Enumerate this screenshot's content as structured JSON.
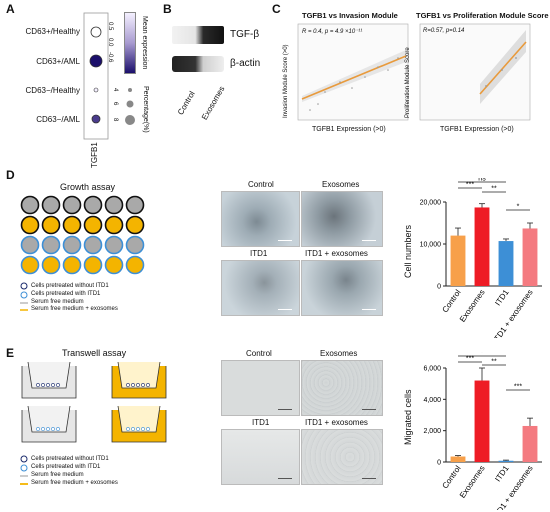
{
  "panel_labels": {
    "A": "A",
    "B": "B",
    "C": "C",
    "D": "D",
    "E": "E"
  },
  "panelA": {
    "rows": [
      "CD63+/Healthy",
      "CD63+/AML",
      "CD63−/Healthy",
      "CD63−/AML"
    ],
    "xlabel": "TGFB1",
    "colorbar_title": "Mean expression",
    "colorbar_ticks": [
      "-0.6",
      "0.0",
      "0.5"
    ],
    "size_title": "Percentage(%)",
    "size_ticks": [
      "4",
      "6",
      "8"
    ],
    "colors": {
      "low": "#f4f0ff",
      "high": "#1b0f6b"
    }
  },
  "panelB": {
    "bands": [
      "TGF-β",
      "β-actin"
    ],
    "lanes": [
      "Control",
      "Exosomes"
    ]
  },
  "panelC": {
    "left": {
      "title": "TGFB1 vs Invasion Module",
      "stat": "R = 0.4, p = 4.9 ×10⁻¹¹",
      "xlabel": "TGFB1 Expression (>0)",
      "ylabel": "Invasion Module Score (>0)"
    },
    "right": {
      "title": "TGFB1 vs Proliferation Module Score",
      "stat": "R=0.57, p=0.14",
      "xlabel": "TGFB1 Expression (>0)",
      "ylabel": "Proliferation Module Score"
    },
    "colors": {
      "line": "#e89a3c",
      "band": "#cfcfcf"
    }
  },
  "panelD": {
    "assay_title": "Growth assay",
    "legend": [
      "Cells pretreated without ITD1",
      "Cells pretreated with ITD1",
      "Serum free medium",
      "Serum free medium + exosomes"
    ],
    "image_labels": [
      "Control",
      "Exosomes",
      "ITD1",
      "ITD1 + exosomes"
    ],
    "chart_data": {
      "type": "bar",
      "categories": [
        "Control",
        "Exosomes",
        "ITD1",
        "ITD1 + exosomes"
      ],
      "values": [
        12000,
        18700,
        10700,
        13700
      ],
      "errors": [
        1800,
        900,
        500,
        1300
      ],
      "colors": [
        "#f7a04a",
        "#ee1c25",
        "#3d8fd6",
        "#f47a80"
      ],
      "ylabel": "Cell numbers",
      "ylim": [
        0,
        20000
      ],
      "yticks": [
        "0",
        "10,000",
        "20,000"
      ],
      "significance": [
        {
          "from": 0,
          "to": 1,
          "label": "***"
        },
        {
          "from": 0,
          "to": 2,
          "label": "ns"
        },
        {
          "from": 1,
          "to": 2,
          "label": "**"
        },
        {
          "from": 2,
          "to": 3,
          "label": "*"
        }
      ]
    }
  },
  "panelE": {
    "assay_title": "Transwell assay",
    "legend": [
      "Cells pretreated without ITD1",
      "Cells pretreated with ITD1",
      "Serum free medium",
      "Serum free medium + exosomes"
    ],
    "image_labels": [
      "Control",
      "Exosomes",
      "ITD1",
      "ITD1 + exosomes"
    ],
    "chart_data": {
      "type": "bar",
      "categories": [
        "Control",
        "Exosomes",
        "ITD1",
        "ITD1 + exosomes"
      ],
      "values": [
        350,
        5200,
        80,
        2300
      ],
      "errors": [
        60,
        800,
        40,
        500
      ],
      "colors": [
        "#f7a04a",
        "#ee1c25",
        "#3d8fd6",
        "#f47a80"
      ],
      "ylabel": "Migrated cells",
      "ylim": [
        0,
        6000
      ],
      "yticks": [
        "0",
        "2,000",
        "4,000",
        "6,000"
      ],
      "significance": [
        {
          "from": 0,
          "to": 1,
          "label": "***"
        },
        {
          "from": 0,
          "to": 2,
          "label": "*"
        },
        {
          "from": 1,
          "to": 2,
          "label": "**"
        },
        {
          "from": 2,
          "to": 3,
          "label": "***"
        }
      ]
    }
  }
}
